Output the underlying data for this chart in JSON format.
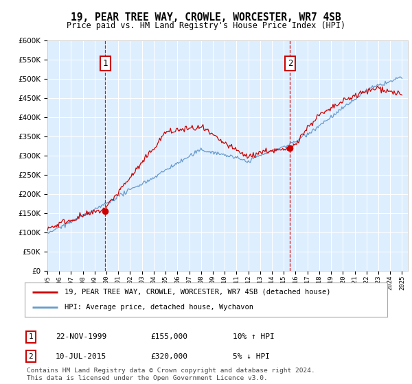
{
  "title": "19, PEAR TREE WAY, CROWLE, WORCESTER, WR7 4SB",
  "subtitle": "Price paid vs. HM Land Registry's House Price Index (HPI)",
  "legend_line1": "19, PEAR TREE WAY, CROWLE, WORCESTER, WR7 4SB (detached house)",
  "legend_line2": "HPI: Average price, detached house, Wychavon",
  "transaction1_label": "1",
  "transaction1_date": "22-NOV-1999",
  "transaction1_price": "£155,000",
  "transaction1_hpi": "10% ↑ HPI",
  "transaction2_label": "2",
  "transaction2_date": "10-JUL-2015",
  "transaction2_price": "£320,000",
  "transaction2_hpi": "5% ↓ HPI",
  "footer": "Contains HM Land Registry data © Crown copyright and database right 2024.\nThis data is licensed under the Open Government Licence v3.0.",
  "red_color": "#cc0000",
  "blue_color": "#6699cc",
  "bg_color": "#ddeeff",
  "grid_color": "#ffffff",
  "ylim_min": 0,
  "ylim_max": 600000,
  "transaction1_x": 1999.9,
  "transaction2_x": 2015.53
}
